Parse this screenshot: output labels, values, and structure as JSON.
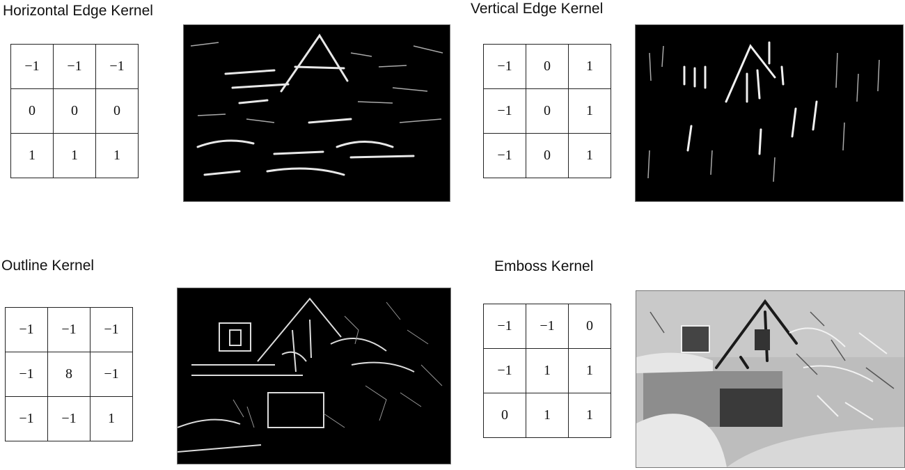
{
  "panels": [
    {
      "title": "Horizontal Edge Kernel",
      "kernel": [
        [
          "−1",
          "−1",
          "−1"
        ],
        [
          "0",
          "0",
          "0"
        ],
        [
          "1",
          "1",
          "1"
        ]
      ],
      "image_style": "horizontal-edges"
    },
    {
      "title": "Vertical Edge Kernel",
      "kernel": [
        [
          "−1",
          "0",
          "1"
        ],
        [
          "−1",
          "0",
          "1"
        ],
        [
          "−1",
          "0",
          "1"
        ]
      ],
      "image_style": "vertical-edges"
    },
    {
      "title": "Outline Kernel",
      "kernel": [
        [
          "−1",
          "−1",
          "−1"
        ],
        [
          "−1",
          "8",
          "−1"
        ],
        [
          "−1",
          "−1",
          "1"
        ]
      ],
      "image_style": "outline"
    },
    {
      "title": "Emboss Kernel",
      "kernel": [
        [
          "−1",
          "−1",
          "0"
        ],
        [
          "−1",
          "1",
          "1"
        ],
        [
          "0",
          "1",
          "1"
        ]
      ],
      "image_style": "emboss"
    }
  ]
}
